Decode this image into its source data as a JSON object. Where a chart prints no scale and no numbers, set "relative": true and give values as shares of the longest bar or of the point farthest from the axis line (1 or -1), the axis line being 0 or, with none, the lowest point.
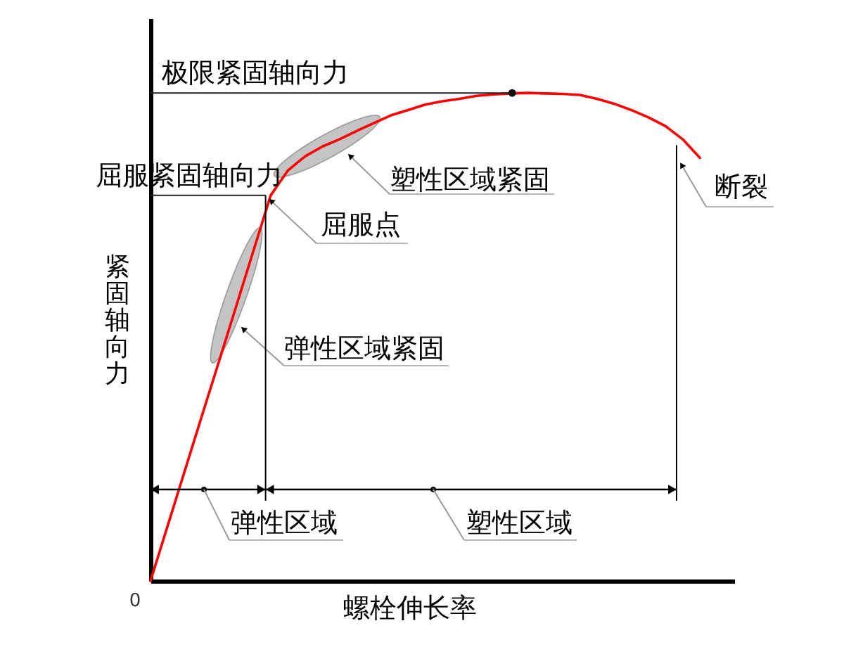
{
  "chart_data": {
    "type": "line",
    "relative": true,
    "xlabel": "螺栓伸长率",
    "ylabel": "紧固轴向力",
    "categories": [
      null,
      null,
      null,
      null,
      null,
      null,
      null,
      null,
      null,
      null,
      null,
      null,
      null,
      null,
      null,
      null,
      null,
      null,
      null,
      null,
      null,
      null,
      null,
      null,
      null,
      null,
      null,
      null,
      null,
      null,
      null,
      null,
      null
    ],
    "values": [
      0,
      0.113,
      0.226,
      0.339,
      0.451,
      0.564,
      0.677,
      0.79,
      0.841,
      0.87,
      0.89,
      0.905,
      0.922,
      0.938,
      0.954,
      0.965,
      0.976,
      0.983,
      0.988,
      0.994,
      0.997,
      0.999,
      1,
      0.999,
      0.998,
      0.996,
      0.988,
      0.978,
      0.965,
      0.95,
      0.932,
      0.905,
      0.867
    ],
    "color": "#ff0000",
    "ref_lines": [
      {
        "axis": "y",
        "value": 1,
        "label": "极限紧固轴向力"
      },
      {
        "axis": "y",
        "value": 0.79,
        "label": "屈服紧固轴向力"
      }
    ],
    "annotations": [
      "屈服点",
      "塑性区域紧固",
      "弹性区域紧固",
      "断裂",
      "弹性区域",
      "塑性区域",
      "0"
    ]
  }
}
